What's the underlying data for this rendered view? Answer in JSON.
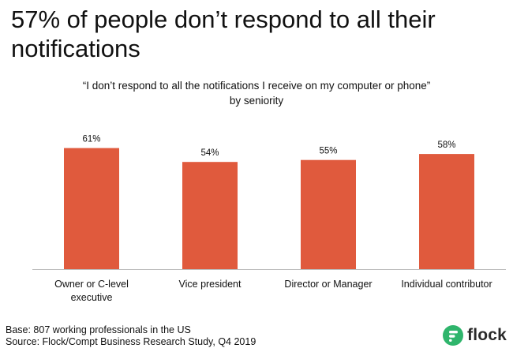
{
  "headline": "57% of people don’t respond to all their notifications",
  "subtitle": {
    "line1": "“I don’t respond to all the notifications I receive on my computer or phone”",
    "line2": "by seniority"
  },
  "chart_data": {
    "type": "bar",
    "categories": [
      [
        "Owner or C-level",
        "executive"
      ],
      [
        "Vice president"
      ],
      [
        "Director or Manager"
      ],
      [
        "Individual contributor"
      ]
    ],
    "values": [
      61,
      54,
      55,
      58
    ],
    "data_labels": [
      "61%",
      "54%",
      "55%",
      "58%"
    ],
    "unit": "%",
    "ylim": [
      0,
      100
    ],
    "grid": false,
    "legend": "none",
    "bar_color": "#e05a3d",
    "axis_color": "#bdbdbd"
  },
  "footer": {
    "base": "Base: 807 working professionals in the US",
    "source": "Source: Flock/Compt Business Research Study, Q4 2019"
  },
  "logo": {
    "text": "flock",
    "mark_color": "#2fb56c",
    "icon": "flock-logo-icon"
  }
}
